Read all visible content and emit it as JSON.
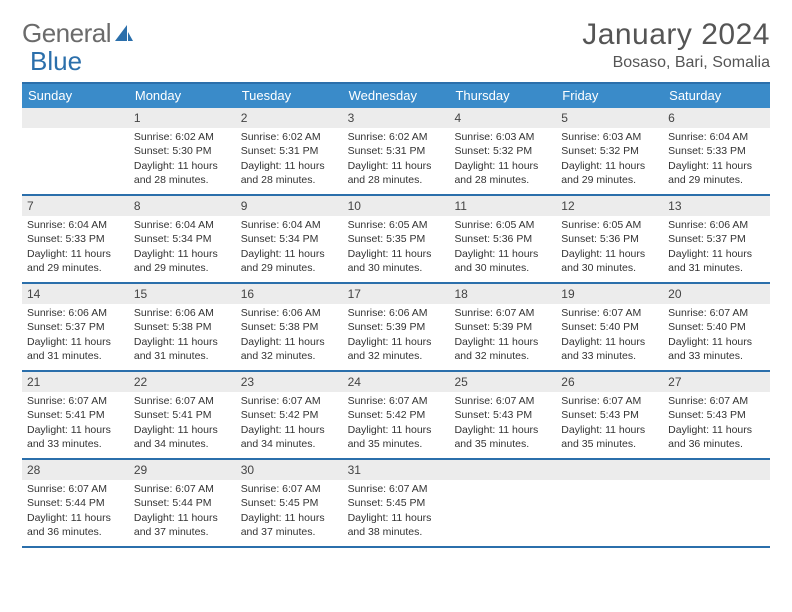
{
  "logo": {
    "text1": "General",
    "text2": "Blue"
  },
  "title": "January 2024",
  "location": "Bosaso, Bari, Somalia",
  "day_names": [
    "Sunday",
    "Monday",
    "Tuesday",
    "Wednesday",
    "Thursday",
    "Friday",
    "Saturday"
  ],
  "colors": {
    "header_bg": "#3a8bc9",
    "border": "#2b6fab",
    "daynum_bg": "#ececec",
    "text": "#333333",
    "title_text": "#555555"
  },
  "weeks": [
    [
      {
        "n": "",
        "sr": "",
        "ss": "",
        "dl": ""
      },
      {
        "n": "1",
        "sr": "Sunrise: 6:02 AM",
        "ss": "Sunset: 5:30 PM",
        "dl": "Daylight: 11 hours and 28 minutes."
      },
      {
        "n": "2",
        "sr": "Sunrise: 6:02 AM",
        "ss": "Sunset: 5:31 PM",
        "dl": "Daylight: 11 hours and 28 minutes."
      },
      {
        "n": "3",
        "sr": "Sunrise: 6:02 AM",
        "ss": "Sunset: 5:31 PM",
        "dl": "Daylight: 11 hours and 28 minutes."
      },
      {
        "n": "4",
        "sr": "Sunrise: 6:03 AM",
        "ss": "Sunset: 5:32 PM",
        "dl": "Daylight: 11 hours and 28 minutes."
      },
      {
        "n": "5",
        "sr": "Sunrise: 6:03 AM",
        "ss": "Sunset: 5:32 PM",
        "dl": "Daylight: 11 hours and 29 minutes."
      },
      {
        "n": "6",
        "sr": "Sunrise: 6:04 AM",
        "ss": "Sunset: 5:33 PM",
        "dl": "Daylight: 11 hours and 29 minutes."
      }
    ],
    [
      {
        "n": "7",
        "sr": "Sunrise: 6:04 AM",
        "ss": "Sunset: 5:33 PM",
        "dl": "Daylight: 11 hours and 29 minutes."
      },
      {
        "n": "8",
        "sr": "Sunrise: 6:04 AM",
        "ss": "Sunset: 5:34 PM",
        "dl": "Daylight: 11 hours and 29 minutes."
      },
      {
        "n": "9",
        "sr": "Sunrise: 6:04 AM",
        "ss": "Sunset: 5:34 PM",
        "dl": "Daylight: 11 hours and 29 minutes."
      },
      {
        "n": "10",
        "sr": "Sunrise: 6:05 AM",
        "ss": "Sunset: 5:35 PM",
        "dl": "Daylight: 11 hours and 30 minutes."
      },
      {
        "n": "11",
        "sr": "Sunrise: 6:05 AM",
        "ss": "Sunset: 5:36 PM",
        "dl": "Daylight: 11 hours and 30 minutes."
      },
      {
        "n": "12",
        "sr": "Sunrise: 6:05 AM",
        "ss": "Sunset: 5:36 PM",
        "dl": "Daylight: 11 hours and 30 minutes."
      },
      {
        "n": "13",
        "sr": "Sunrise: 6:06 AM",
        "ss": "Sunset: 5:37 PM",
        "dl": "Daylight: 11 hours and 31 minutes."
      }
    ],
    [
      {
        "n": "14",
        "sr": "Sunrise: 6:06 AM",
        "ss": "Sunset: 5:37 PM",
        "dl": "Daylight: 11 hours and 31 minutes."
      },
      {
        "n": "15",
        "sr": "Sunrise: 6:06 AM",
        "ss": "Sunset: 5:38 PM",
        "dl": "Daylight: 11 hours and 31 minutes."
      },
      {
        "n": "16",
        "sr": "Sunrise: 6:06 AM",
        "ss": "Sunset: 5:38 PM",
        "dl": "Daylight: 11 hours and 32 minutes."
      },
      {
        "n": "17",
        "sr": "Sunrise: 6:06 AM",
        "ss": "Sunset: 5:39 PM",
        "dl": "Daylight: 11 hours and 32 minutes."
      },
      {
        "n": "18",
        "sr": "Sunrise: 6:07 AM",
        "ss": "Sunset: 5:39 PM",
        "dl": "Daylight: 11 hours and 32 minutes."
      },
      {
        "n": "19",
        "sr": "Sunrise: 6:07 AM",
        "ss": "Sunset: 5:40 PM",
        "dl": "Daylight: 11 hours and 33 minutes."
      },
      {
        "n": "20",
        "sr": "Sunrise: 6:07 AM",
        "ss": "Sunset: 5:40 PM",
        "dl": "Daylight: 11 hours and 33 minutes."
      }
    ],
    [
      {
        "n": "21",
        "sr": "Sunrise: 6:07 AM",
        "ss": "Sunset: 5:41 PM",
        "dl": "Daylight: 11 hours and 33 minutes."
      },
      {
        "n": "22",
        "sr": "Sunrise: 6:07 AM",
        "ss": "Sunset: 5:41 PM",
        "dl": "Daylight: 11 hours and 34 minutes."
      },
      {
        "n": "23",
        "sr": "Sunrise: 6:07 AM",
        "ss": "Sunset: 5:42 PM",
        "dl": "Daylight: 11 hours and 34 minutes."
      },
      {
        "n": "24",
        "sr": "Sunrise: 6:07 AM",
        "ss": "Sunset: 5:42 PM",
        "dl": "Daylight: 11 hours and 35 minutes."
      },
      {
        "n": "25",
        "sr": "Sunrise: 6:07 AM",
        "ss": "Sunset: 5:43 PM",
        "dl": "Daylight: 11 hours and 35 minutes."
      },
      {
        "n": "26",
        "sr": "Sunrise: 6:07 AM",
        "ss": "Sunset: 5:43 PM",
        "dl": "Daylight: 11 hours and 35 minutes."
      },
      {
        "n": "27",
        "sr": "Sunrise: 6:07 AM",
        "ss": "Sunset: 5:43 PM",
        "dl": "Daylight: 11 hours and 36 minutes."
      }
    ],
    [
      {
        "n": "28",
        "sr": "Sunrise: 6:07 AM",
        "ss": "Sunset: 5:44 PM",
        "dl": "Daylight: 11 hours and 36 minutes."
      },
      {
        "n": "29",
        "sr": "Sunrise: 6:07 AM",
        "ss": "Sunset: 5:44 PM",
        "dl": "Daylight: 11 hours and 37 minutes."
      },
      {
        "n": "30",
        "sr": "Sunrise: 6:07 AM",
        "ss": "Sunset: 5:45 PM",
        "dl": "Daylight: 11 hours and 37 minutes."
      },
      {
        "n": "31",
        "sr": "Sunrise: 6:07 AM",
        "ss": "Sunset: 5:45 PM",
        "dl": "Daylight: 11 hours and 38 minutes."
      },
      {
        "n": "",
        "sr": "",
        "ss": "",
        "dl": ""
      },
      {
        "n": "",
        "sr": "",
        "ss": "",
        "dl": ""
      },
      {
        "n": "",
        "sr": "",
        "ss": "",
        "dl": ""
      }
    ]
  ]
}
